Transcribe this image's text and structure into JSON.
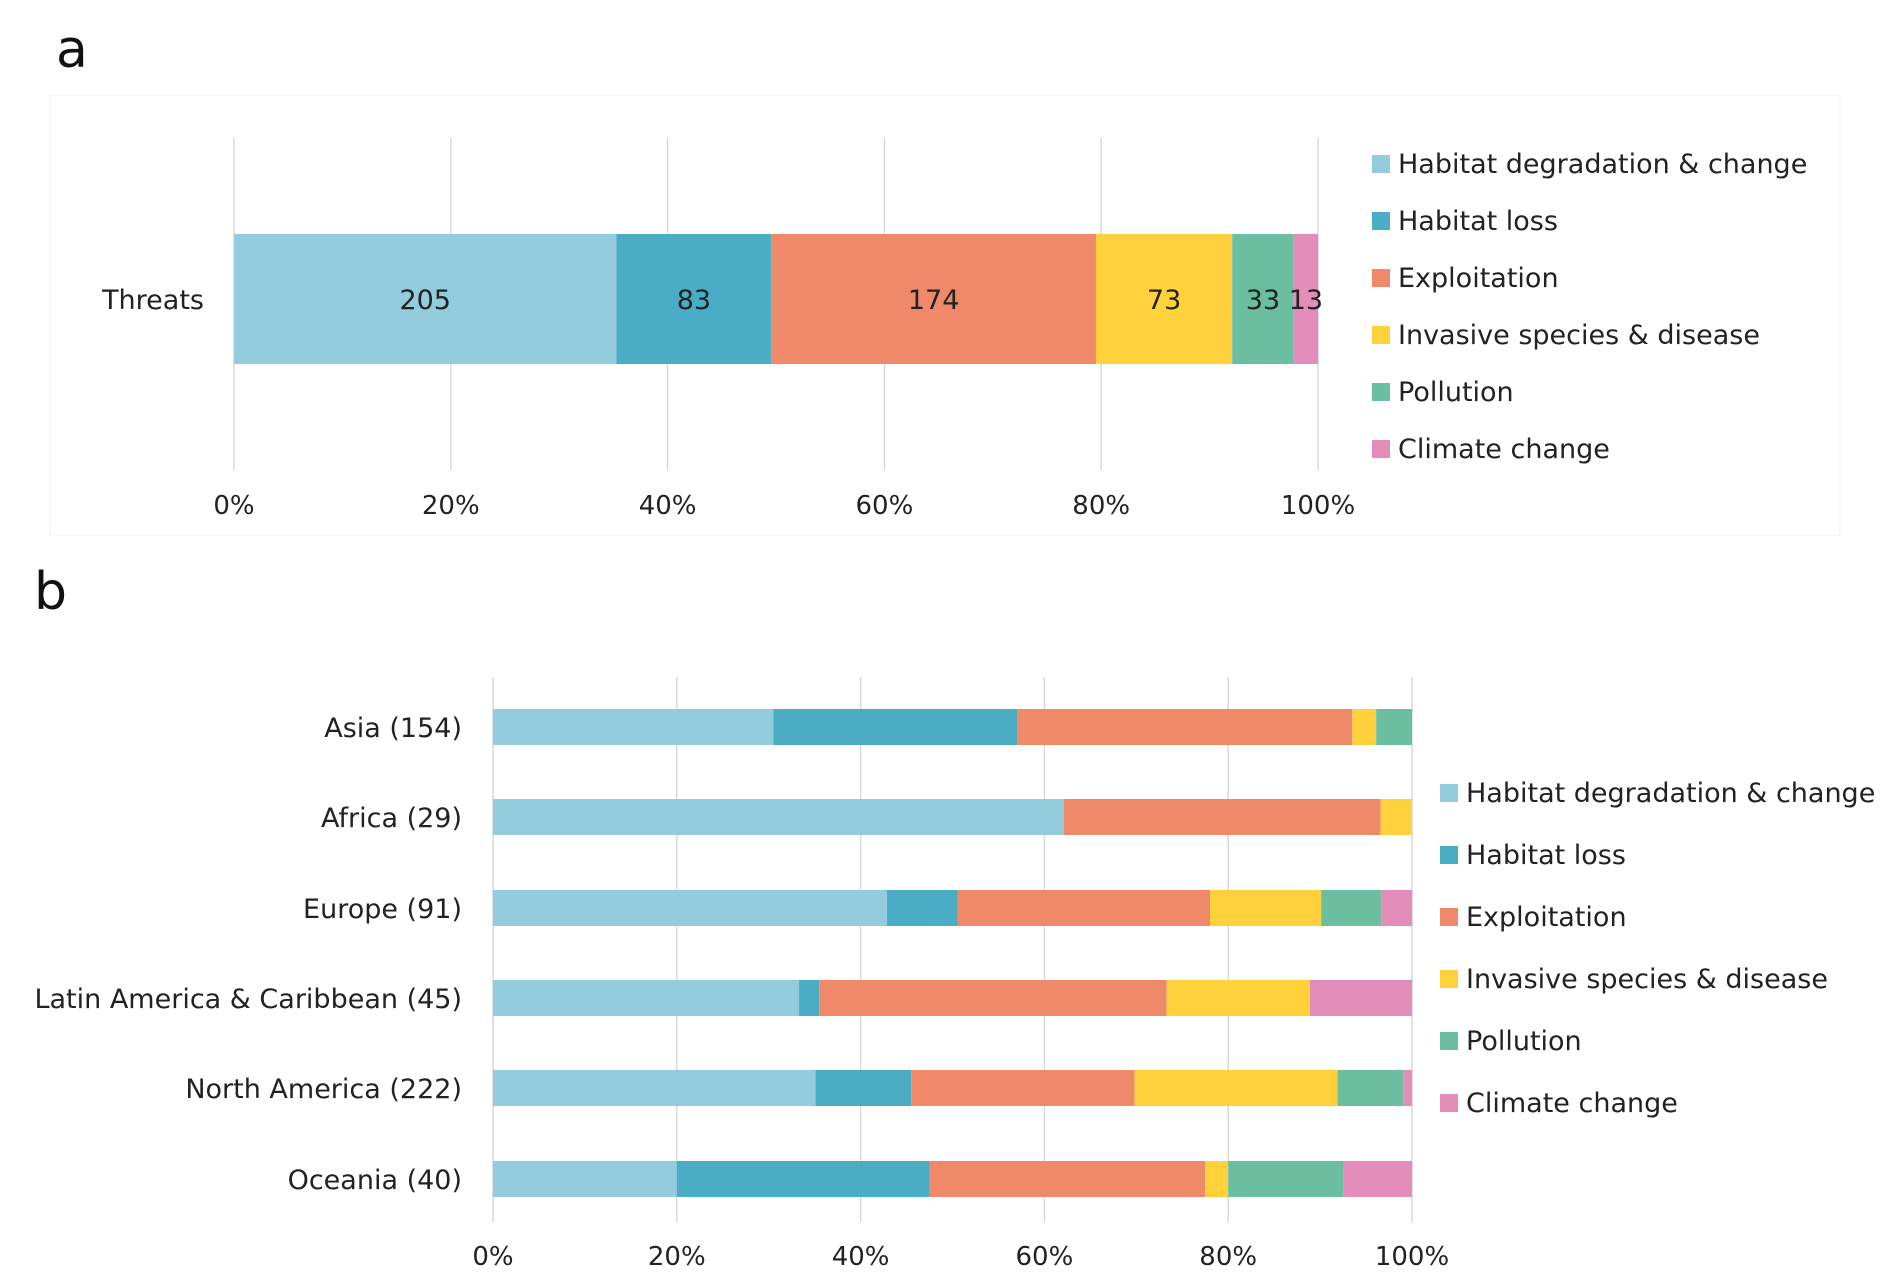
{
  "panel_labels": {
    "a": "a",
    "b": "b"
  },
  "chart_data": [
    {
      "type": "bar",
      "orientation": "horizontal",
      "stacked": "percent",
      "panel": "a",
      "categories": [
        "Threats"
      ],
      "series": [
        {
          "name": "Habitat degradation & change",
          "color": "#93CDDD",
          "values": [
            205
          ]
        },
        {
          "name": "Habitat loss",
          "color": "#4BACC6",
          "values": [
            83
          ]
        },
        {
          "name": "Exploitation",
          "color": "#F0896A",
          "values": [
            174
          ]
        },
        {
          "name": "Invasive species & disease",
          "color": "#FFD13A",
          "values": [
            73
          ]
        },
        {
          "name": "Pollution",
          "color": "#6BBFA0",
          "values": [
            33
          ]
        },
        {
          "name": "Climate change",
          "color": "#E38DBA",
          "values": [
            13
          ]
        }
      ],
      "data_labels": true,
      "x_ticks": [
        "0%",
        "20%",
        "40%",
        "60%",
        "80%",
        "100%"
      ],
      "xlim": [
        0,
        100
      ],
      "grid": "vertical",
      "legend": "right"
    },
    {
      "type": "bar",
      "orientation": "horizontal",
      "stacked": "percent",
      "panel": "b",
      "categories": [
        "Asia (154)",
        "Africa (29)",
        "Europe (91)",
        "Latin America & Caribbean (45)",
        "North America (222)",
        "Oceania (40)"
      ],
      "series": [
        {
          "name": "Habitat degradation & change",
          "color": "#93CDDD",
          "values": [
            30.5,
            62.1,
            42.9,
            33.3,
            35.1,
            20.0
          ]
        },
        {
          "name": "Habitat loss",
          "color": "#4BACC6",
          "values": [
            26.6,
            0,
            7.7,
            2.2,
            10.4,
            27.5
          ]
        },
        {
          "name": "Exploitation",
          "color": "#F0896A",
          "values": [
            36.4,
            34.5,
            27.5,
            37.8,
            24.3,
            30.0
          ]
        },
        {
          "name": "Invasive species & disease",
          "color": "#FFD13A",
          "values": [
            2.6,
            3.4,
            12.1,
            15.6,
            22.1,
            2.5
          ]
        },
        {
          "name": "Pollution",
          "color": "#6BBFA0",
          "values": [
            3.9,
            0,
            6.6,
            0,
            7.2,
            12.5
          ]
        },
        {
          "name": "Climate change",
          "color": "#E38DBA",
          "values": [
            0,
            0,
            3.3,
            11.1,
            0.9,
            7.5
          ]
        }
      ],
      "data_labels": false,
      "x_ticks": [
        "0%",
        "20%",
        "40%",
        "60%",
        "80%",
        "100%"
      ],
      "xlim": [
        0,
        100
      ],
      "grid": "vertical",
      "legend": "right"
    }
  ]
}
